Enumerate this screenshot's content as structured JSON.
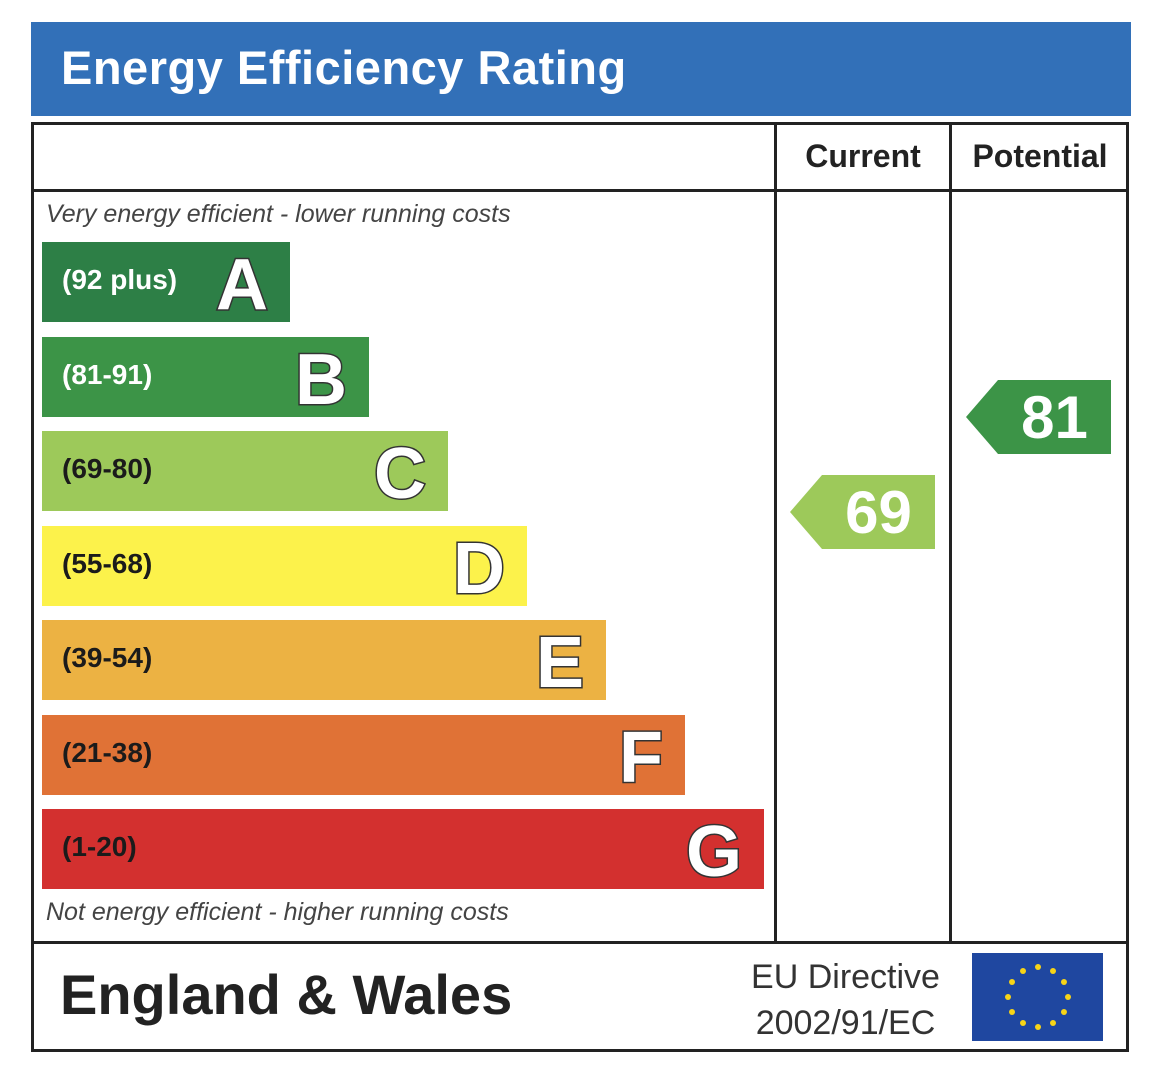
{
  "title": "Energy Efficiency Rating",
  "columns": {
    "current": "Current",
    "potential": "Potential"
  },
  "notes": {
    "top": "Very energy efficient - lower running costs",
    "bottom": "Not energy efficient - higher running costs"
  },
  "chart_data": {
    "type": "bar",
    "bands": [
      {
        "letter": "A",
        "range": "(92 plus)",
        "min": 92,
        "color": "#2d7f46",
        "range_text_color": "#ffffff"
      },
      {
        "letter": "B",
        "range": "(81-91)",
        "min": 81,
        "color": "#3c9447",
        "range_text_color": "#ffffff"
      },
      {
        "letter": "C",
        "range": "(69-80)",
        "min": 69,
        "color": "#9dc95a",
        "range_text_color": "#1b1b1b"
      },
      {
        "letter": "D",
        "range": "(55-68)",
        "min": 55,
        "color": "#fcf24b",
        "range_text_color": "#1b1b1b"
      },
      {
        "letter": "E",
        "range": "(39-54)",
        "min": 39,
        "color": "#ecb243",
        "range_text_color": "#1b1b1b"
      },
      {
        "letter": "F",
        "range": "(21-38)",
        "min": 21,
        "color": "#e07236",
        "range_text_color": "#1b1b1b"
      },
      {
        "letter": "G",
        "range": "(1-20)",
        "min": 1,
        "color": "#d3302f",
        "range_text_color": "#1b1b1b"
      }
    ],
    "ratings": {
      "current": {
        "value": "69",
        "band": "C",
        "color": "#9dc95a"
      },
      "potential": {
        "value": "81",
        "band": "B",
        "color": "#3c9447"
      }
    }
  },
  "footer": {
    "country": "England & Wales",
    "directive_line1": "EU Directive",
    "directive_line2": "2002/91/EC"
  },
  "icons": {
    "flag": "eu-flag-icon"
  },
  "colors": {
    "header": "#3270b8",
    "eu_flag": "#1f47a0",
    "eu_star": "#f7d417"
  }
}
